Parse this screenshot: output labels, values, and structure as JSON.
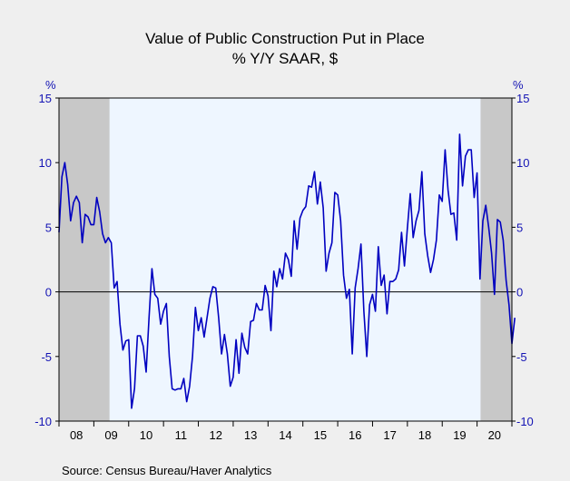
{
  "chart_data": {
    "type": "line",
    "title": "Value of Public Construction Put in Place",
    "subtitle": "% Y/Y   SAAR, $",
    "ylabel_left": "%",
    "ylabel_right": "%",
    "ylim": [
      -10,
      15
    ],
    "yticks": [
      -10,
      -5,
      0,
      5,
      10,
      15
    ],
    "xlim": [
      2008.0,
      2021.0
    ],
    "xtick_labels": [
      "08",
      "09",
      "10",
      "11",
      "12",
      "13",
      "14",
      "15",
      "16",
      "17",
      "18",
      "19",
      "20"
    ],
    "recessions": [
      [
        2008.0,
        2009.45
      ],
      [
        2020.1,
        2021.0
      ]
    ],
    "zero_line": true,
    "source": "Source:   Census Bureau/Haver Analytics",
    "colors": {
      "series": "#0000c0",
      "plot_bg": "#eef6ff",
      "recession": "#c8c8c8",
      "frame_bg": "#efefef",
      "axis_text": "#1414b4"
    },
    "series": [
      {
        "x_start": 2008.0,
        "step": 0.08333,
        "values": [
          4.6,
          8.9,
          10.0,
          8.3,
          5.5,
          6.9,
          7.4,
          6.9,
          3.8,
          6.0,
          5.8,
          5.2,
          5.2,
          7.3,
          6.2,
          4.5,
          3.8,
          4.2,
          3.8,
          0.3,
          0.8,
          -2.5,
          -4.5,
          -3.8,
          -3.7,
          -9.0,
          -7.5,
          -3.4,
          -3.4,
          -4.2,
          -6.2,
          -2.0,
          1.8,
          -0.2,
          -0.5,
          -2.5,
          -1.5,
          -0.9,
          -5.0,
          -7.5,
          -7.6,
          -7.5,
          -7.5,
          -6.7,
          -8.5,
          -7.3,
          -5.0,
          -1.2,
          -3.0,
          -2.0,
          -3.5,
          -2.0,
          -0.5,
          0.4,
          0.3,
          -2.0,
          -4.8,
          -3.3,
          -4.8,
          -7.3,
          -6.6,
          -3.7,
          -6.3,
          -3.2,
          -4.3,
          -4.8,
          -2.3,
          -2.2,
          -0.9,
          -1.4,
          -1.4,
          0.5,
          -0.3,
          -3.0,
          1.6,
          0.4,
          1.8,
          1.0,
          3.0,
          2.5,
          1.2,
          5.5,
          3.3,
          5.7,
          6.3,
          6.6,
          8.2,
          8.1,
          9.3,
          6.8,
          8.5,
          6.5,
          1.6,
          3.0,
          3.8,
          7.7,
          7.5,
          5.5,
          1.3,
          -0.5,
          0.2,
          -4.8,
          0.3,
          1.8,
          3.7,
          -1.5,
          -5.0,
          -1.0,
          -0.2,
          -1.5,
          3.5,
          0.5,
          1.3,
          -1.7,
          0.8,
          0.8,
          1.0,
          1.7,
          4.6,
          2.0,
          4.9,
          7.6,
          4.2,
          5.5,
          6.3,
          9.3,
          4.5,
          2.8,
          1.5,
          2.5,
          4.0,
          7.5,
          7.0,
          11.0,
          7.9,
          6.0,
          6.1,
          4.0,
          12.2,
          8.2,
          10.5,
          11.0,
          11.0,
          7.3,
          9.2,
          1.0,
          5.5,
          6.7,
          5.0,
          3.0,
          -0.2,
          5.6,
          5.4,
          4.0,
          0.9,
          -1.0,
          -4.0,
          -2.0
        ]
      }
    ]
  }
}
